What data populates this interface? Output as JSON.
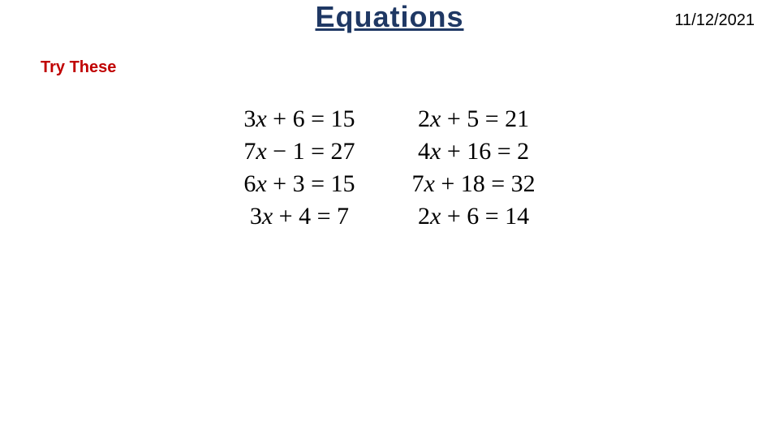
{
  "title": "Equations",
  "date": "11/12/2021",
  "subtitle": "Try These",
  "equations": {
    "left": [
      {
        "coef": "3",
        "var": "x",
        "op": "+",
        "const": "6",
        "rhs": "15"
      },
      {
        "coef": "7",
        "var": "x",
        "op": "−",
        "const": "1",
        "rhs": "27"
      },
      {
        "coef": "6",
        "var": "x",
        "op": "+",
        "const": "3",
        "rhs": "15"
      },
      {
        "coef": "3",
        "var": "x",
        "op": "+",
        "const": "4",
        "rhs": "7"
      }
    ],
    "right": [
      {
        "coef": "2",
        "var": "x",
        "op": "+",
        "const": "5",
        "rhs": "21"
      },
      {
        "coef": "4",
        "var": "x",
        "op": "+",
        "const": "16",
        "rhs": "2"
      },
      {
        "coef": "7",
        "var": "x",
        "op": "+",
        "const": "18",
        "rhs": "32"
      },
      {
        "coef": "2",
        "var": "x",
        "op": "+",
        "const": "6",
        "rhs": "14"
      }
    ]
  },
  "styling": {
    "title_color": "#1f3864",
    "title_fontsize": 36,
    "subtitle_color": "#c00000",
    "subtitle_fontsize": 20,
    "date_fontsize": 20,
    "eq_fontsize": 30,
    "eq_color": "#000000",
    "background_color": "#ffffff"
  }
}
